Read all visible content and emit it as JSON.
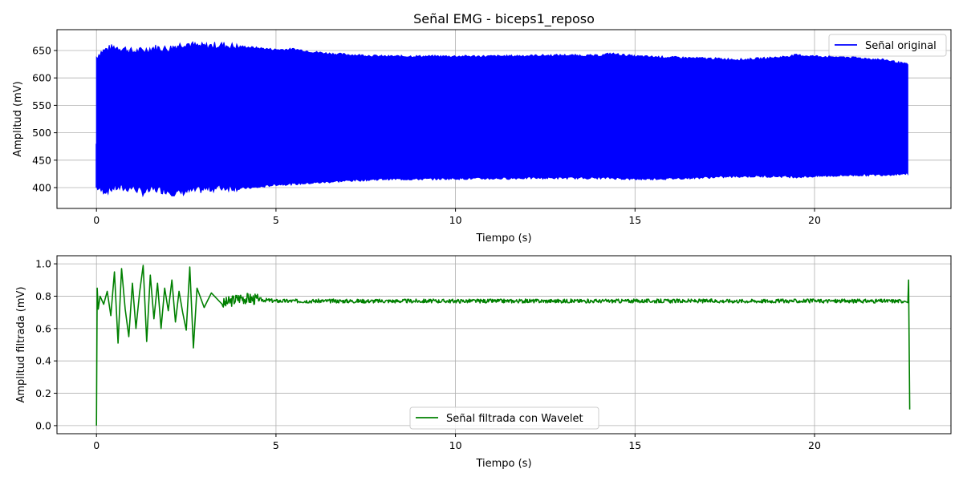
{
  "chart_data": [
    {
      "type": "line",
      "title": "Señal EMG - biceps1_reposo",
      "xlabel": "Tiempo (s)",
      "ylabel": "Amplitud (mV)",
      "xlim": [
        -1.1,
        23.8
      ],
      "ylim": [
        362,
        688
      ],
      "xticks": [
        0,
        5,
        10,
        15,
        20
      ],
      "yticks": [
        400,
        450,
        500,
        550,
        600,
        650
      ],
      "grid": true,
      "legend_position": "top-right",
      "series": [
        {
          "name": "Señal original",
          "color": "#0000ff",
          "rendering": "dense-oscillation-band",
          "x": [
            0,
            0.1,
            0.3,
            0.5,
            0.8,
            1.0,
            1.3,
            1.6,
            2.0,
            2.2,
            2.5,
            2.8,
            3.0,
            3.5,
            4.0,
            4.5,
            5.0,
            5.5,
            6.0,
            6.5,
            7.0,
            8.0,
            9.0,
            10.0,
            11.0,
            12.0,
            13.0,
            14.0,
            14.3,
            15.0,
            16.0,
            17.0,
            18.0,
            19.0,
            19.5,
            20.0,
            21.0,
            22.0,
            22.6
          ],
          "upper": [
            640,
            648,
            655,
            658,
            655,
            650,
            652,
            657,
            655,
            660,
            665,
            660,
            660,
            662,
            658,
            655,
            652,
            653,
            648,
            645,
            643,
            640,
            640,
            640,
            640,
            641,
            642,
            641,
            645,
            640,
            638,
            636,
            634,
            638,
            642,
            640,
            638,
            633,
            625
          ],
          "lower": [
            400,
            393,
            392,
            398,
            396,
            398,
            389,
            395,
            392,
            387,
            391,
            393,
            395,
            398,
            398,
            400,
            405,
            406,
            408,
            410,
            412,
            415,
            415,
            416,
            416,
            417,
            417,
            417,
            417,
            415,
            416,
            418,
            420,
            420,
            419,
            420,
            422,
            423,
            425
          ]
        }
      ]
    },
    {
      "type": "line",
      "title": "",
      "xlabel": "Tiempo (s)",
      "ylabel": "Amplitud filtrada (mV)",
      "xlim": [
        -1.1,
        23.8
      ],
      "ylim": [
        -0.05,
        1.05
      ],
      "xticks": [
        0,
        5,
        10,
        15,
        20
      ],
      "yticks": [
        0.0,
        0.2,
        0.4,
        0.6,
        0.8,
        1.0
      ],
      "grid": true,
      "legend_position": "lower-center",
      "series": [
        {
          "name": "Señal filtrada con Wavelet",
          "color": "#008000",
          "x": [
            0,
            0.02,
            0.05,
            0.1,
            0.2,
            0.3,
            0.4,
            0.5,
            0.6,
            0.7,
            0.8,
            0.9,
            1.0,
            1.1,
            1.2,
            1.3,
            1.4,
            1.5,
            1.6,
            1.7,
            1.8,
            1.9,
            2.0,
            2.1,
            2.2,
            2.3,
            2.4,
            2.5,
            2.6,
            2.7,
            2.8,
            3.0,
            3.2,
            3.5,
            4.0,
            5,
            10,
            15,
            20,
            22.5,
            22.6,
            22.62,
            22.65
          ],
          "y": [
            0.0,
            0.85,
            0.72,
            0.8,
            0.75,
            0.83,
            0.68,
            0.95,
            0.51,
            0.97,
            0.72,
            0.55,
            0.88,
            0.6,
            0.82,
            0.99,
            0.52,
            0.93,
            0.66,
            0.88,
            0.6,
            0.85,
            0.71,
            0.9,
            0.64,
            0.83,
            0.7,
            0.59,
            0.98,
            0.48,
            0.85,
            0.73,
            0.82,
            0.75,
            0.79,
            0.77,
            0.77,
            0.77,
            0.77,
            0.77,
            0.76,
            0.9,
            0.1
          ]
        }
      ]
    }
  ]
}
